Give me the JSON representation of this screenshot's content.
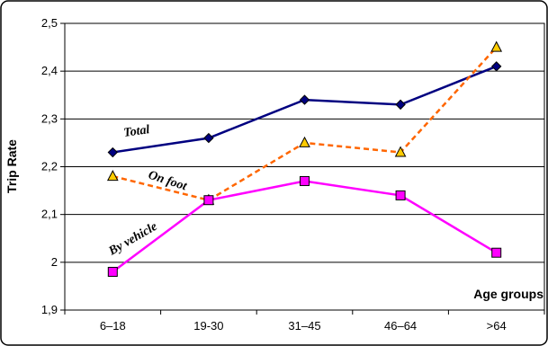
{
  "chart_data": {
    "type": "line",
    "categories": [
      "6–18",
      "19-30",
      "31–45",
      "46–64",
      ">64"
    ],
    "xlabel": "Age groups",
    "ylabel": "Trip Rate",
    "ylim": [
      1.9,
      2.5
    ],
    "yticks": [
      "1,9",
      "2",
      "2,1",
      "2,2",
      "2,3",
      "2,4",
      "2,5"
    ],
    "grid": "horizontal",
    "legend": "none",
    "series": [
      {
        "name": "Total",
        "values": [
          2.23,
          2.26,
          2.34,
          2.33,
          2.41
        ],
        "color": "#000080",
        "line": "solid",
        "marker": "diamond",
        "marker_color": "#000080"
      },
      {
        "name": "On foot",
        "values": [
          2.18,
          2.13,
          2.25,
          2.23,
          2.45
        ],
        "color": "#ff6600",
        "line": "dashed",
        "marker": "triangle",
        "marker_color": "#ffcc00"
      },
      {
        "name": "By vehicle",
        "values": [
          1.98,
          2.13,
          2.17,
          2.14,
          2.02
        ],
        "color": "#ff00ff",
        "line": "solid",
        "marker": "square",
        "marker_color": "#ff00ff"
      }
    ]
  }
}
